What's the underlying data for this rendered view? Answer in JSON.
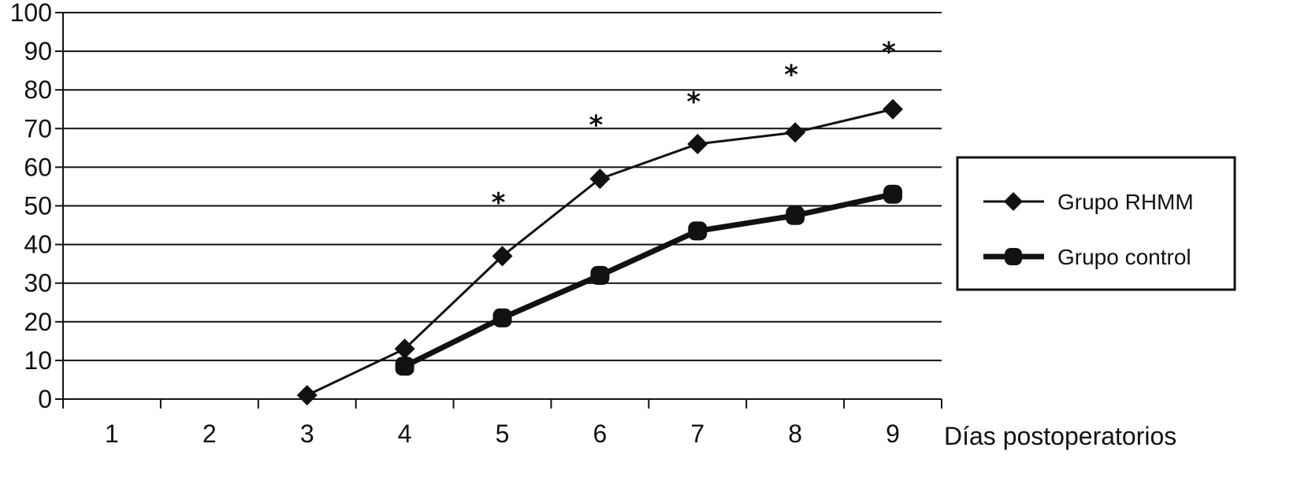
{
  "chart_data": {
    "type": "line",
    "title": "",
    "xlabel": "Días postoperatorios",
    "ylabel": "",
    "categories": [
      "1",
      "2",
      "3",
      "4",
      "5",
      "6",
      "7",
      "8",
      "9"
    ],
    "yticks": [
      "0",
      "10",
      "20",
      "30",
      "40",
      "50",
      "60",
      "70",
      "80",
      "90",
      "100"
    ],
    "ylim": [
      0,
      100
    ],
    "grid": true,
    "legend_position": "right",
    "series": [
      {
        "name": "Grupo RHMM",
        "marker": "diamond",
        "line_style": "thin",
        "color": "#111111",
        "x": [
          3,
          4,
          5,
          6,
          7,
          8,
          9
        ],
        "values": [
          1,
          13,
          37,
          57,
          66,
          69,
          75
        ]
      },
      {
        "name": "Grupo control",
        "marker": "circle",
        "line_style": "thick",
        "color": "#111111",
        "x": [
          4,
          5,
          6,
          7,
          8,
          9
        ],
        "values": [
          8.5,
          21,
          32,
          43.5,
          47.5,
          53
        ]
      }
    ],
    "annotations": [
      {
        "text": "*",
        "x": 5,
        "y": 53
      },
      {
        "text": "*",
        "x": 6,
        "y": 73
      },
      {
        "text": "*",
        "x": 7,
        "y": 79
      },
      {
        "text": "*",
        "x": 8,
        "y": 86
      },
      {
        "text": "*",
        "x": 9,
        "y": 92
      }
    ]
  }
}
